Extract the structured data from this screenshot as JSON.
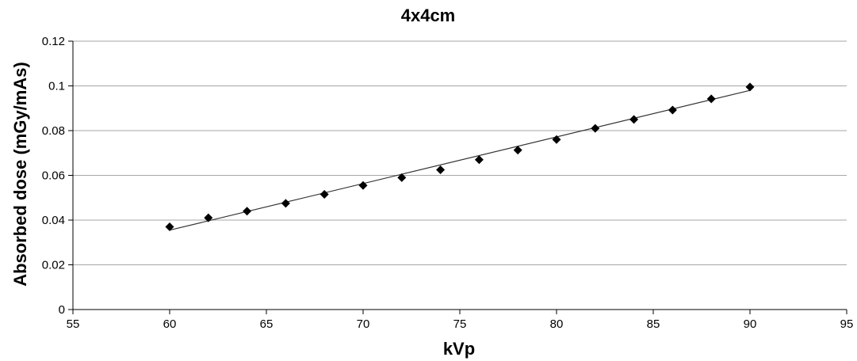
{
  "chart_data": {
    "type": "scatter",
    "title": "4x4cm",
    "xlabel": "kVp",
    "ylabel": "Absorbed dose (mGy/mAs)",
    "xlim": [
      55,
      95
    ],
    "ylim": [
      0,
      0.12
    ],
    "x_ticks": [
      "55",
      "60",
      "65",
      "70",
      "75",
      "80",
      "85",
      "90",
      "95"
    ],
    "y_ticks": [
      "0",
      "0.02",
      "0.04",
      "0.06",
      "0.08",
      "0.1",
      "0.12"
    ],
    "grid": "horizontal",
    "marker": "diamond",
    "series": [
      {
        "x": [
          60,
          62,
          64,
          66,
          68,
          70,
          72,
          74,
          76,
          78,
          80,
          82,
          84,
          86,
          88,
          90
        ],
        "y": [
          0.037,
          0.041,
          0.044,
          0.0475,
          0.0515,
          0.0555,
          0.059,
          0.0625,
          0.067,
          0.0713,
          0.076,
          0.081,
          0.085,
          0.0892,
          0.0942,
          0.0995
        ]
      }
    ],
    "trendline": {
      "type": "linear",
      "x": [
        60,
        90
      ],
      "y": [
        0.0355,
        0.098
      ]
    }
  }
}
